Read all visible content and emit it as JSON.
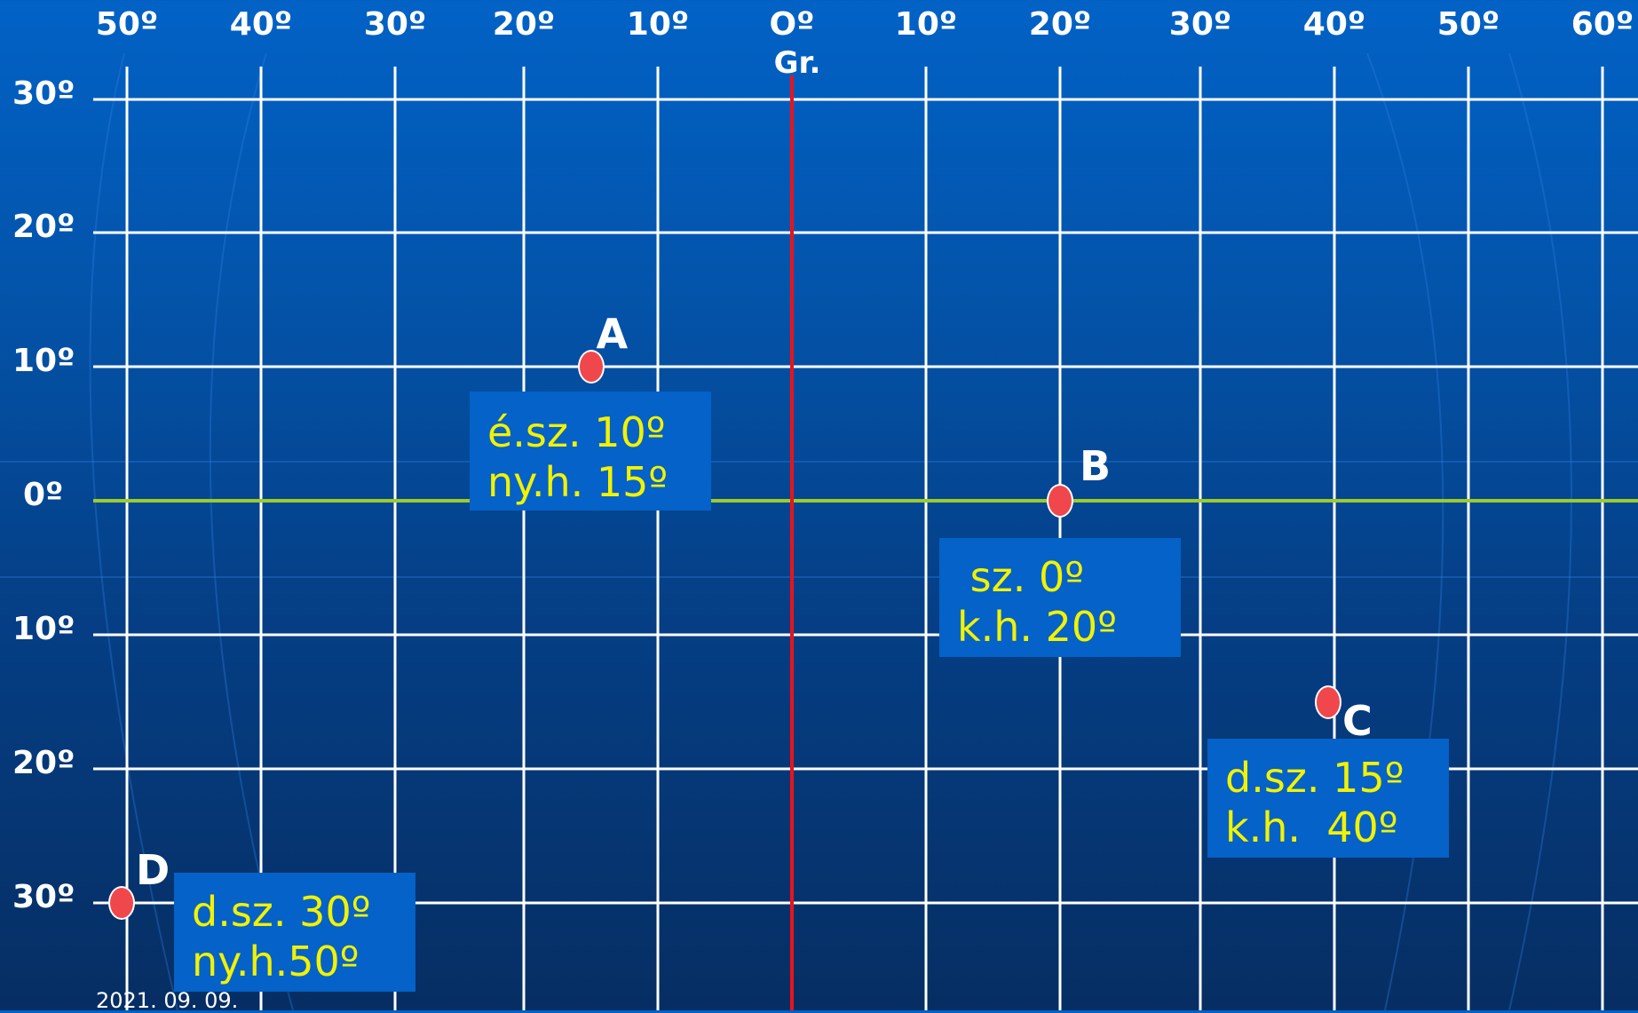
{
  "top_labels": [
    "50º",
    "40º",
    "30º",
    "20º",
    "10º",
    "Oº",
    "10º",
    "20º",
    "30º",
    "40º",
    "50º",
    "60º"
  ],
  "greenwich_label": "Gr.",
  "left_labels": [
    "30º",
    "20º",
    "10º",
    "0º",
    "10º",
    "20º",
    "30º"
  ],
  "points": {
    "A": {
      "letter": "A",
      "line1": "é.sz. 10º",
      "line2": "ny.h. 15º",
      "lat": 10,
      "lon": -15
    },
    "B": {
      "letter": "B",
      "line1": " sz. 0º",
      "line2": "k.h. 20º",
      "lat": 0,
      "lon": 20
    },
    "C": {
      "letter": "C",
      "line1": "d.sz. 15º",
      "line2": "k.h.  40º",
      "lat": -15,
      "lon": 40
    },
    "D": {
      "letter": "D",
      "line1": "d.sz. 30º",
      "line2": "ny.h.50º",
      "lat": -30,
      "lon": -50
    }
  },
  "footer_date": "2021. 09. 09.",
  "colors": {
    "grid": "#ffffff",
    "greenwich": "#e8141c",
    "equator": "#9ccc2a",
    "point": "#f0474d",
    "box": "#0462c8",
    "box_text": "#f2f200"
  }
}
